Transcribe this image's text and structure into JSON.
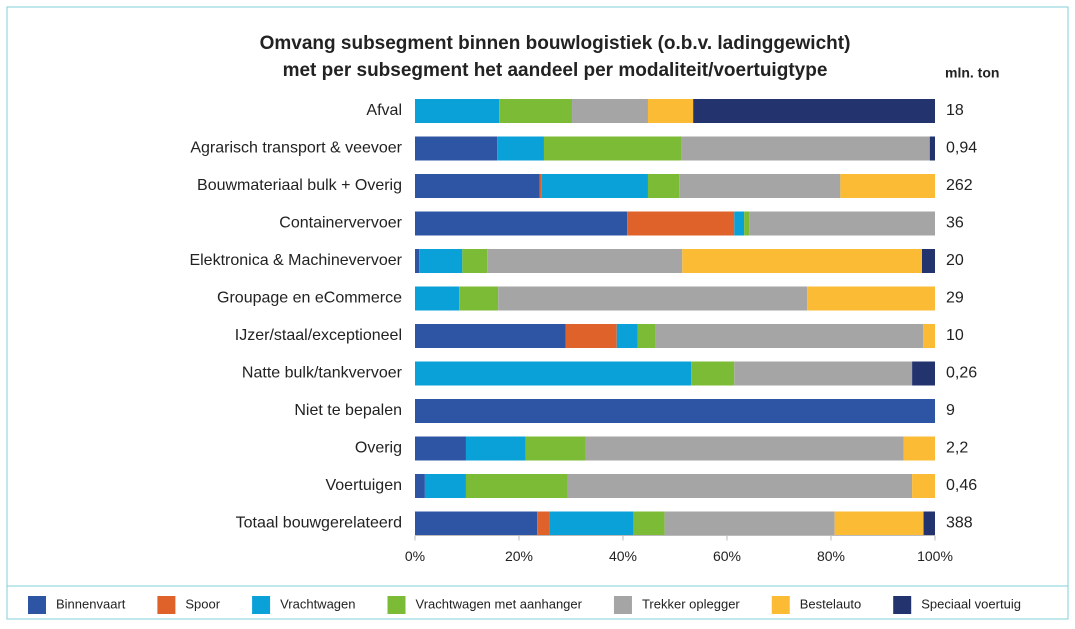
{
  "chart_data": {
    "type": "stacked_bar_horizontal",
    "title": "Omvang subsegment binnen bouwlogistiek (o.b.v. ladinggewicht)",
    "subtitle": "met per subsegment het aandeel per modaliteit/voertuigtype",
    "categories": [
      "Afval",
      "Agrarisch transport & veevoer",
      "Bouwmateriaal bulk + Overig",
      "Containervervoer",
      "Elektronica & Machinevervoer",
      "Groupage en eCommerce",
      "IJzer/staal/exceptioneel",
      "Natte bulk/tankvervoer",
      "Niet te bepalen",
      "Overig",
      "Voertuigen",
      "Totaal bouwgerelateerd"
    ],
    "series": [
      {
        "name": "Binnenvaart",
        "color": "#2e55a4",
        "values": [
          0,
          15.8,
          24,
          40.8,
          0.8,
          0,
          29,
          0,
          100,
          9.8,
          1.9,
          23.5
        ]
      },
      {
        "name": "Spoor",
        "color": "#e0622b",
        "values": [
          0,
          0,
          0.4,
          20.6,
          0,
          0,
          9.8,
          0,
          0,
          0,
          0,
          2.3
        ]
      },
      {
        "name": "Vrachtwagen",
        "color": "#0aa0d8",
        "values": [
          16.2,
          9,
          20.4,
          1.9,
          8.3,
          8.5,
          4,
          53.1,
          0,
          11.5,
          7.9,
          16.2
        ]
      },
      {
        "name": "Vrachtwagen met aanhanger",
        "color": "#7cbb35",
        "values": [
          14,
          26.5,
          6,
          1,
          4.8,
          7.5,
          3.5,
          8.3,
          0,
          11.5,
          19.6,
          6
        ]
      },
      {
        "name": "Trekker oplegger",
        "color": "#a5a5a5",
        "values": [
          14.6,
          47.7,
          31,
          35.7,
          37.5,
          59.4,
          51.4,
          34.2,
          0,
          61.2,
          66.2,
          32.7
        ]
      },
      {
        "name": "Bestelauto",
        "color": "#fbbb35",
        "values": [
          8.7,
          0,
          18.2,
          0,
          46.1,
          24.6,
          2.3,
          0,
          0,
          6,
          4.4,
          17.1
        ]
      },
      {
        "name": "Speciaal voertuig",
        "color": "#22336e",
        "values": [
          46.5,
          1,
          0,
          0,
          2.5,
          0,
          0,
          4.4,
          0,
          0,
          0,
          2.2
        ]
      }
    ],
    "xlim": [
      0,
      100
    ],
    "xticks": [
      {
        "value": 0,
        "label": "0%"
      },
      {
        "value": 20,
        "label": "20%"
      },
      {
        "value": 40,
        "label": "40%"
      },
      {
        "value": 60,
        "label": "60%"
      },
      {
        "value": 80,
        "label": "80%"
      },
      {
        "value": 100,
        "label": "100%"
      }
    ],
    "totals": {
      "title": "mln. ton",
      "values": [
        18,
        0.94,
        262,
        36,
        20,
        29,
        10,
        0.26,
        9,
        2.2,
        0.46,
        388
      ],
      "value_labels": [
        "18",
        "0,94",
        "262",
        "36",
        "20",
        "29",
        "10",
        "0,26",
        "9",
        "2,2",
        "0,46",
        "388"
      ]
    },
    "legend": "bottom"
  }
}
